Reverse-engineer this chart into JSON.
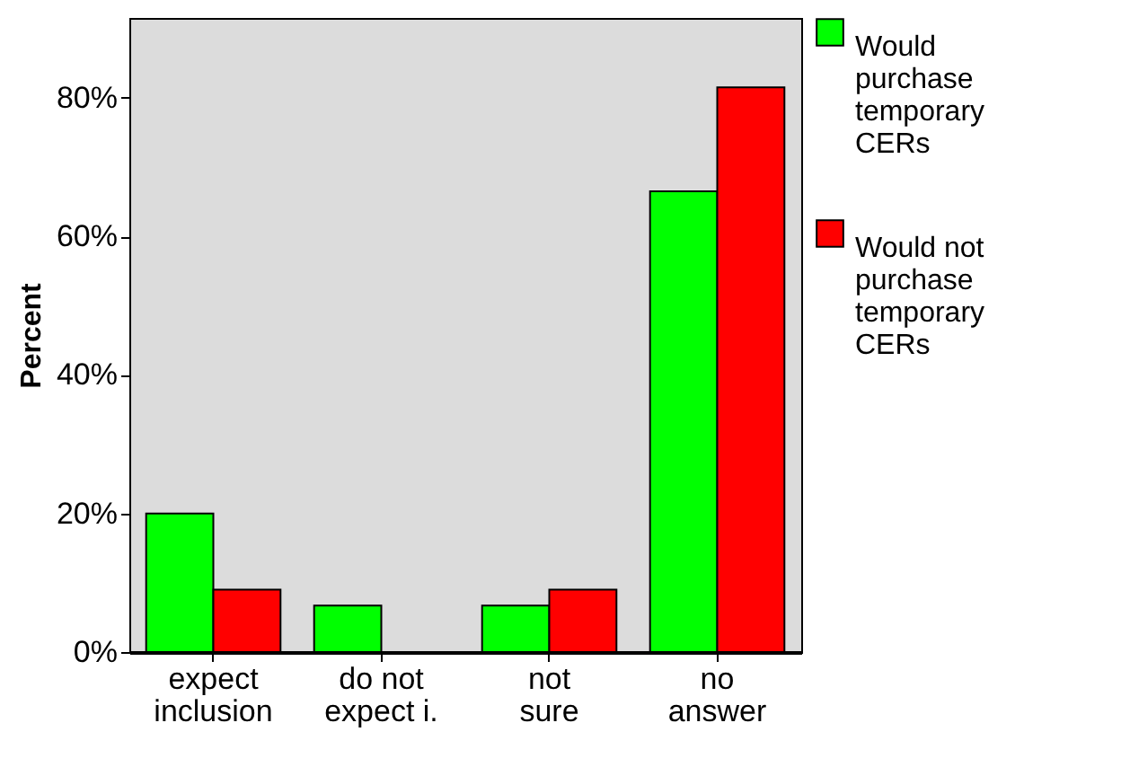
{
  "chart_data": {
    "type": "bar",
    "ylabel": "Percent",
    "categories": [
      "expect\ninclusion",
      "do not\nexpect i.",
      "not\nsure",
      "no\nanswer"
    ],
    "series": [
      {
        "name": "Would\npurchase\ntemporary\nCERs",
        "color": "#00ff00",
        "values": [
          20,
          6.7,
          6.7,
          66.5
        ]
      },
      {
        "name": "Would not\npurchase\ntemporary\nCERs",
        "color": "#ff0000",
        "values": [
          9,
          null,
          9,
          81.5
        ]
      }
    ],
    "ylim": [
      0,
      91.5
    ],
    "yticks": [
      {
        "value": 0,
        "label": "0%"
      },
      {
        "value": 20,
        "label": "20%"
      },
      {
        "value": 40,
        "label": "40%"
      },
      {
        "value": 60,
        "label": "60%"
      },
      {
        "value": 80,
        "label": "80%"
      }
    ],
    "grid": false,
    "legend": "right"
  }
}
